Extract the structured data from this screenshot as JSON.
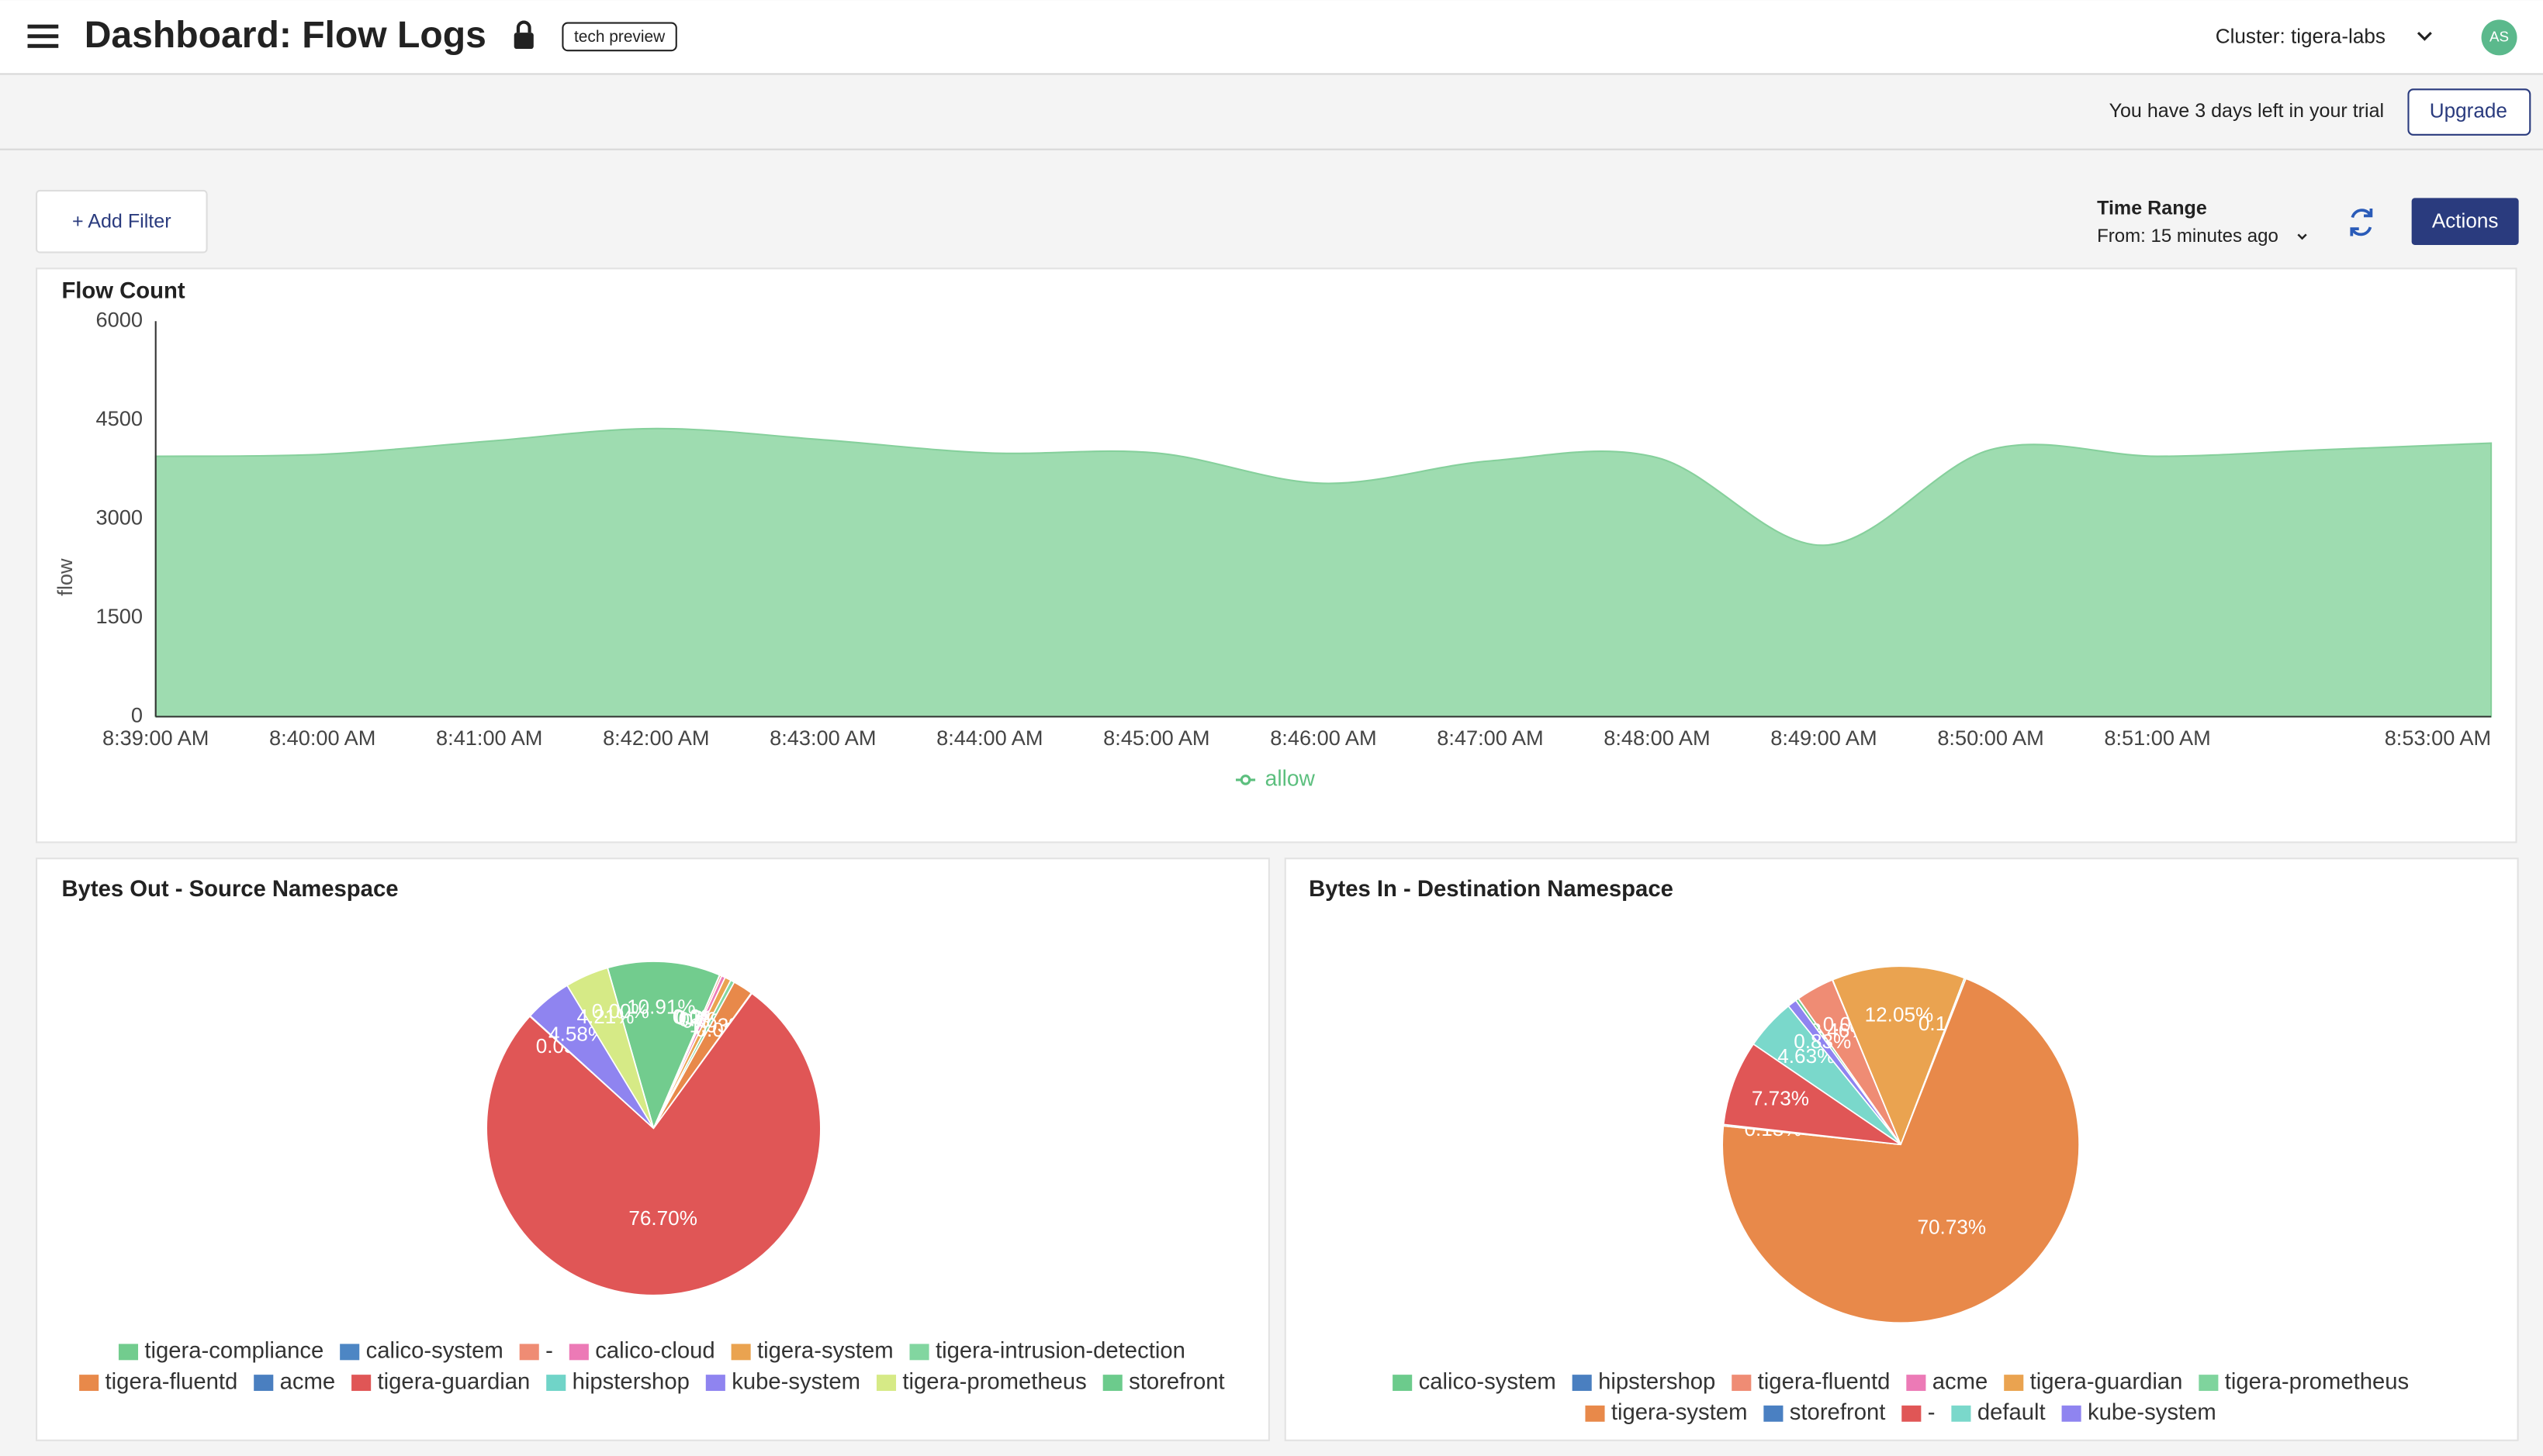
{
  "header": {
    "title": "Dashboard: Flow Logs",
    "badge": "tech preview",
    "cluster": "Cluster: tigera-labs",
    "avatar": "AS"
  },
  "banner": {
    "message": "You have 3 days left in your trial",
    "button": "Upgrade"
  },
  "toolbar": {
    "add_filter": "+ Add Filter",
    "time_range_label": "Time Range",
    "time_range_value": "From: 15 minutes ago",
    "actions": "Actions"
  },
  "chart_data": [
    {
      "type": "area",
      "title": "Flow Count",
      "y_label": "flow",
      "categories": [
        "8:39:00 AM",
        "8:40:00 AM",
        "8:41:00 AM",
        "8:42:00 AM",
        "8:43:00 AM",
        "8:44:00 AM",
        "8:45:00 AM",
        "8:46:00 AM",
        "8:47:00 AM",
        "8:48:00 AM",
        "8:49:00 AM",
        "8:50:00 AM",
        "8:51:00 AM",
        null,
        "8:53:00 AM"
      ],
      "ylim": [
        0,
        6000
      ],
      "yticks": [
        0,
        1500,
        3000,
        4500,
        6000
      ],
      "series": [
        {
          "name": "allow",
          "color": "#9edcb0",
          "values": [
            3950,
            3980,
            4180,
            4370,
            4200,
            4000,
            4000,
            3540,
            3880,
            3930,
            2600,
            4050,
            3950,
            4050,
            4150
          ]
        }
      ]
    },
    {
      "type": "pie",
      "title": "Bytes Out - Source Namespace",
      "categories": [
        "tigera-compliance",
        "calico-system",
        "-",
        "calico-cloud",
        "tigera-system",
        "tigera-intrusion-detection",
        "tigera-fluentd",
        "acme",
        "tigera-guardian",
        "hipstershop",
        "kube-system",
        "tigera-prometheus",
        "storefront"
      ],
      "values": [
        10.91,
        0.03,
        0.19,
        0.36,
        0.6,
        0.38,
        1.93,
        0.06,
        76.7,
        0.05,
        4.58,
        4.21,
        0.0
      ],
      "value_labels": [
        "10.91%",
        "0.03%",
        "0.19%",
        "0.36%",
        "0.60%",
        "0.38%",
        "1.93%",
        "0.06%",
        "76.70%",
        "0.05%",
        "4.58%",
        "4.21%",
        "0.00%"
      ],
      "colors": [
        "#72cc8e",
        "#4d86c4",
        "#ef8c74",
        "#ec7ab6",
        "#eaa350",
        "#82d6a0",
        "#e8894a",
        "#4a7fc0",
        "#e05656",
        "#70d4c8",
        "#8f84f0",
        "#d6ea86",
        "#6ccb8c"
      ]
    },
    {
      "type": "pie",
      "title": "Bytes In - Destination Namespace",
      "categories": [
        "calico-system",
        "hipstershop",
        "tigera-fluentd",
        "acme",
        "tigera-guardian",
        "tigera-prometheus",
        "tigera-system",
        "storefront",
        "-",
        "default",
        "kube-system"
      ],
      "values": [
        0.28,
        0.01,
        3.46,
        0.03,
        12.05,
        0.14,
        70.73,
        0.13,
        7.73,
        4.63,
        0.83
      ],
      "value_labels": [
        "0.28%",
        "0.01%",
        "3.46%",
        "0.03%",
        "12.05%",
        "0.14%",
        "70.73%",
        "0.13%",
        "7.73%",
        "4.63%",
        "0.83%"
      ],
      "colors": [
        "#6ccb8c",
        "#4a7fc0",
        "#ef8c74",
        "#ec7ab6",
        "#eaa350",
        "#7fd49d",
        "#e8894a",
        "#4a80c2",
        "#e05656",
        "#7ad8cb",
        "#8f84f0"
      ]
    }
  ]
}
